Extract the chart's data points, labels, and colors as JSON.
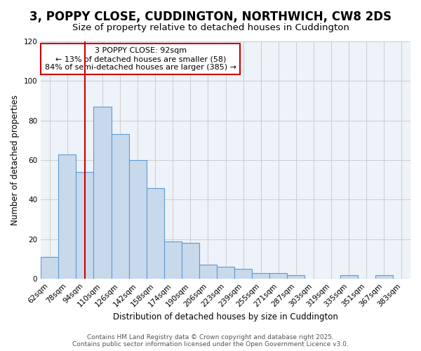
{
  "title": "3, POPPY CLOSE, CUDDINGTON, NORTHWICH, CW8 2DS",
  "subtitle": "Size of property relative to detached houses in Cuddington",
  "xlabel": "Distribution of detached houses by size in Cuddington",
  "ylabel": "Number of detached properties",
  "bar_labels": [
    "62sqm",
    "78sqm",
    "94sqm",
    "110sqm",
    "126sqm",
    "142sqm",
    "158sqm",
    "174sqm",
    "190sqm",
    "206sqm",
    "223sqm",
    "239sqm",
    "255sqm",
    "271sqm",
    "287sqm",
    "303sqm",
    "319sqm",
    "335sqm",
    "351sqm",
    "367sqm",
    "383sqm"
  ],
  "bar_values": [
    11,
    63,
    54,
    87,
    73,
    60,
    46,
    19,
    18,
    7,
    6,
    5,
    3,
    3,
    2,
    0,
    0,
    2,
    0,
    2,
    0
  ],
  "bar_face_color": "#c9d9ec",
  "bar_edge_color": "#5b9bd5",
  "grid_color": "#cccccc",
  "background_color": "#eef2f9",
  "vline_x": 2,
  "vline_color": "#cc0000",
  "annotation_title": "3 POPPY CLOSE: 92sqm",
  "annotation_line1": "← 13% of detached houses are smaller (58)",
  "annotation_line2": "84% of semi-detached houses are larger (385) →",
  "annotation_box_color": "#cc0000",
  "ylim": [
    0,
    120
  ],
  "footer1": "Contains HM Land Registry data © Crown copyright and database right 2025.",
  "footer2": "Contains public sector information licensed under the Open Government Licence v3.0.",
  "title_fontsize": 12,
  "subtitle_fontsize": 9.5,
  "xlabel_fontsize": 8.5,
  "ylabel_fontsize": 8.5,
  "tick_fontsize": 7.5,
  "annotation_fontsize": 8,
  "footer_fontsize": 6.5
}
